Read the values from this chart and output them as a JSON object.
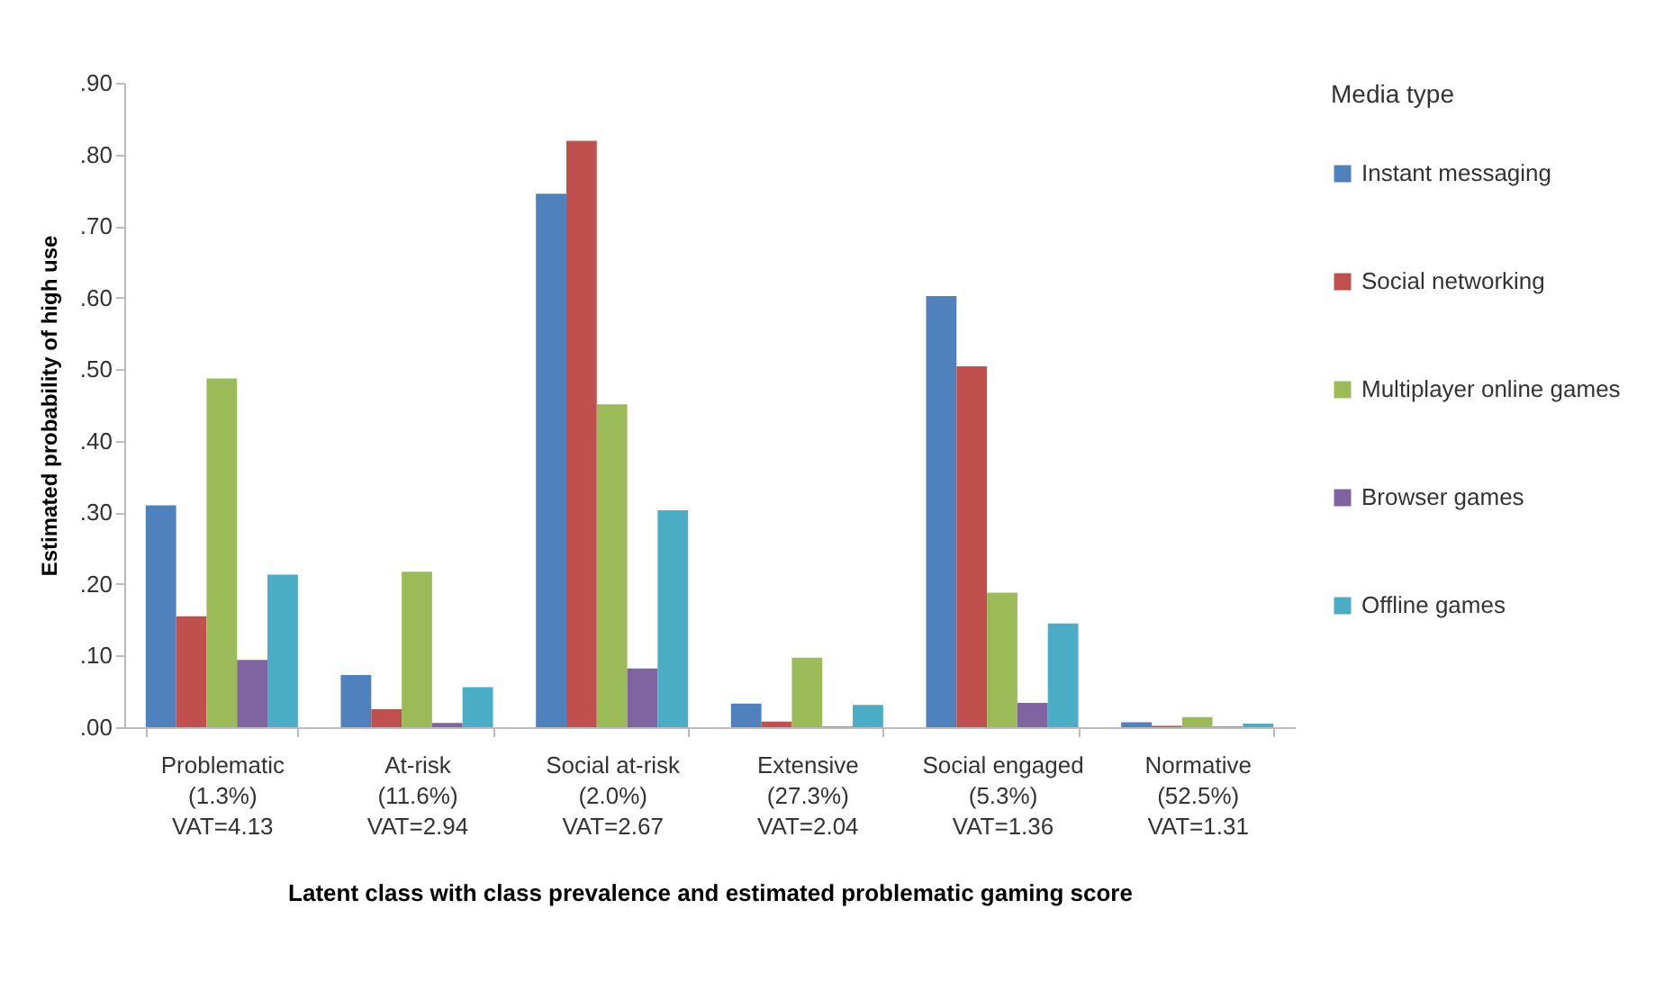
{
  "chart_data": {
    "type": "bar",
    "xlabel": "Latent class with class prevalence and estimated problematic gaming score",
    "ylabel": "Estimated probability of high use",
    "legend_title": "Media type",
    "legend": "right",
    "grid": false,
    "categories": [
      "Problematic\n(1.3%)\nVAT=4.13",
      "At-risk\n(11.6%)\nVAT=2.94",
      "Social at-risk\n(2.0%)\nVAT=2.67",
      "Extensive\n(27.3%)\nVAT=2.04",
      "Social engaged\n(5.3%)\nVAT=1.36",
      "Normative\n(52.5%)\nVAT=1.31"
    ],
    "ylim": [
      0,
      0.9
    ],
    "yticks": [
      {
        "value": 0,
        "label": ".00"
      },
      {
        "value": 0.1,
        "label": ".10"
      },
      {
        "value": 0.2,
        "label": ".20"
      },
      {
        "value": 0.3,
        "label": ".30"
      },
      {
        "value": 0.4,
        "label": ".40"
      },
      {
        "value": 0.5,
        "label": ".50"
      },
      {
        "value": 0.6,
        "label": ".60"
      },
      {
        "value": 0.7,
        "label": ".70"
      },
      {
        "value": 0.8,
        "label": ".80"
      },
      {
        "value": 0.9,
        "label": ".90"
      }
    ],
    "series": [
      {
        "name": "Instant messaging",
        "color": "#4f81bd",
        "values": [
          0.31,
          0.073,
          0.745,
          0.033,
          0.602,
          0.007
        ]
      },
      {
        "name": "Social networking",
        "color": "#c0504d",
        "values": [
          0.155,
          0.025,
          0.819,
          0.008,
          0.504,
          0.002
        ]
      },
      {
        "name": "Multiplayer online games",
        "color": "#9bbb59",
        "values": [
          0.487,
          0.217,
          0.451,
          0.097,
          0.188,
          0.014
        ]
      },
      {
        "name": "Browser games",
        "color": "#8064a2",
        "values": [
          0.094,
          0.006,
          0.082,
          0.001,
          0.034,
          0.001
        ]
      },
      {
        "name": "Offline games",
        "color": "#4bacc6",
        "values": [
          0.213,
          0.056,
          0.303,
          0.031,
          0.145,
          0.005
        ]
      }
    ]
  }
}
